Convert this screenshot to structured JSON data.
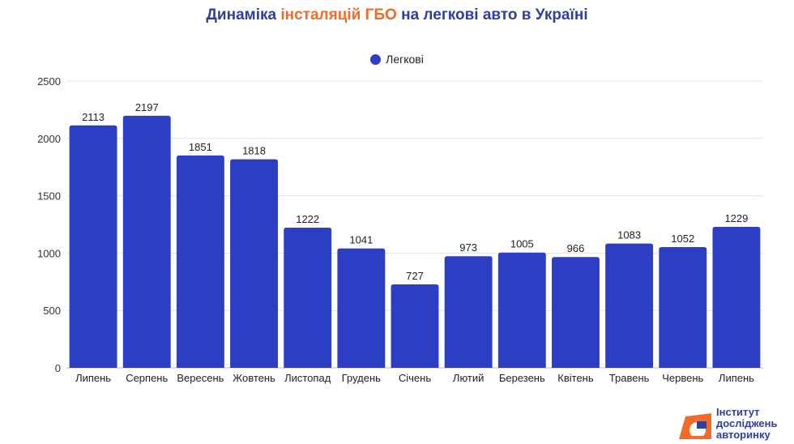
{
  "title": {
    "part1": "Динаміка ",
    "part2": "інсталяцій ГБО",
    "part3": " на легкові авто в Україні",
    "accent_color": "#f26b2a",
    "main_color": "#2f3f9e"
  },
  "chart_data": {
    "type": "bar",
    "categories": [
      "Липень",
      "Серпень",
      "Вересень",
      "Жовтень",
      "Листопад",
      "Грудень",
      "Січень",
      "Лютий",
      "Березень",
      "Квітень",
      "Травень",
      "Червень",
      "Липень"
    ],
    "series": [
      {
        "name": "Легкові",
        "color": "#2c3ec4",
        "values": [
          2113,
          2197,
          1851,
          1818,
          1222,
          1041,
          727,
          973,
          1005,
          966,
          1083,
          1052,
          1229
        ]
      }
    ],
    "yticks": [
      0,
      500,
      1000,
      1500,
      2000,
      2500
    ],
    "ylim": [
      0,
      2500
    ],
    "grid": true,
    "legend_position": "top-center",
    "data_labels": true
  },
  "brand": {
    "line1": "Інститут",
    "line2": "досліджень",
    "line3": "авторинку",
    "logo_color": "#f26b2a"
  }
}
